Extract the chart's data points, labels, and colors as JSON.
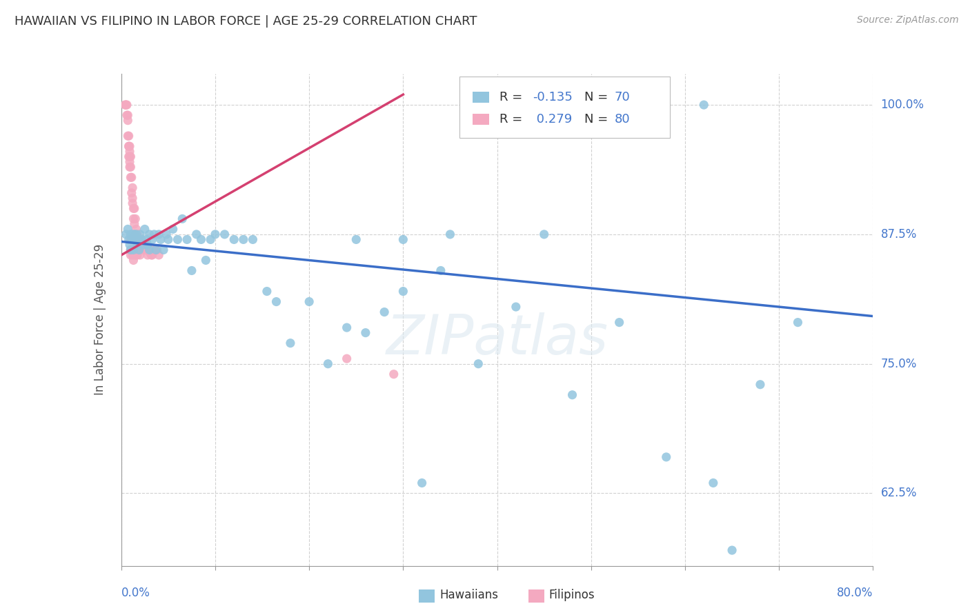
{
  "title": "HAWAIIAN VS FILIPINO IN LABOR FORCE | AGE 25-29 CORRELATION CHART",
  "source": "Source: ZipAtlas.com",
  "ylabel": "In Labor Force | Age 25-29",
  "xlim": [
    0.0,
    0.8
  ],
  "ylim": [
    0.555,
    1.03
  ],
  "hawaii_R": -0.135,
  "hawaii_N": 70,
  "filipino_R": 0.279,
  "filipino_N": 80,
  "hawaii_color": "#92C5DE",
  "filipino_color": "#F4A9C0",
  "hawaii_trend_color": "#3B6EC8",
  "filipino_trend_color": "#D44070",
  "watermark": "ZIPatlas",
  "background_color": "#ffffff",
  "grid_color": "#cccccc",
  "ytick_vals": [
    0.625,
    0.75,
    0.875,
    1.0
  ],
  "ytick_labels": [
    "62.5%",
    "75.0%",
    "87.5%",
    "100.0%"
  ],
  "hawaii_trend_x": [
    0.0,
    0.8
  ],
  "hawaii_trend_y": [
    0.868,
    0.796
  ],
  "filipino_trend_x": [
    0.0,
    0.3
  ],
  "filipino_trend_y": [
    0.855,
    1.01
  ],
  "hawaiians_x": [
    0.005,
    0.007,
    0.008,
    0.009,
    0.01,
    0.01,
    0.011,
    0.012,
    0.013,
    0.014,
    0.015,
    0.016,
    0.017,
    0.018,
    0.019,
    0.02,
    0.022,
    0.024,
    0.025,
    0.027,
    0.028,
    0.03,
    0.03,
    0.033,
    0.035,
    0.037,
    0.04,
    0.042,
    0.045,
    0.048,
    0.05,
    0.055,
    0.06,
    0.065,
    0.07,
    0.075,
    0.08,
    0.085,
    0.09,
    0.095,
    0.1,
    0.11,
    0.12,
    0.13,
    0.14,
    0.155,
    0.165,
    0.18,
    0.2,
    0.22,
    0.24,
    0.26,
    0.28,
    0.3,
    0.32,
    0.34,
    0.38,
    0.42,
    0.48,
    0.53,
    0.58,
    0.63,
    0.65,
    0.68,
    0.72,
    0.3,
    0.35,
    0.25,
    0.45,
    0.62
  ],
  "hawaiians_y": [
    0.875,
    0.88,
    0.87,
    0.865,
    0.875,
    0.86,
    0.87,
    0.875,
    0.86,
    0.875,
    0.87,
    0.875,
    0.865,
    0.87,
    0.86,
    0.875,
    0.87,
    0.865,
    0.88,
    0.87,
    0.865,
    0.875,
    0.86,
    0.87,
    0.875,
    0.86,
    0.875,
    0.87,
    0.86,
    0.875,
    0.87,
    0.88,
    0.87,
    0.89,
    0.87,
    0.84,
    0.875,
    0.87,
    0.85,
    0.87,
    0.875,
    0.875,
    0.87,
    0.87,
    0.87,
    0.82,
    0.81,
    0.77,
    0.81,
    0.75,
    0.785,
    0.78,
    0.8,
    0.82,
    0.635,
    0.84,
    0.75,
    0.805,
    0.72,
    0.79,
    0.66,
    0.635,
    0.57,
    0.73,
    0.79,
    0.87,
    0.875,
    0.87,
    0.875,
    1.0
  ],
  "filipinos_x": [
    0.004,
    0.005,
    0.005,
    0.006,
    0.006,
    0.007,
    0.007,
    0.007,
    0.008,
    0.008,
    0.008,
    0.009,
    0.009,
    0.009,
    0.01,
    0.01,
    0.01,
    0.011,
    0.011,
    0.012,
    0.012,
    0.012,
    0.013,
    0.013,
    0.014,
    0.014,
    0.015,
    0.015,
    0.016,
    0.016,
    0.017,
    0.017,
    0.018,
    0.019,
    0.02,
    0.021,
    0.022,
    0.023,
    0.025,
    0.027,
    0.03,
    0.032,
    0.035,
    0.038,
    0.04,
    0.01,
    0.01,
    0.01,
    0.011,
    0.011,
    0.012,
    0.012,
    0.013,
    0.013,
    0.013,
    0.014,
    0.014,
    0.015,
    0.015,
    0.016,
    0.016,
    0.017,
    0.018,
    0.019,
    0.02,
    0.022,
    0.025,
    0.028,
    0.03,
    0.033,
    0.035,
    0.008,
    0.009,
    0.009,
    0.01,
    0.01,
    0.011,
    0.012,
    0.24,
    0.29
  ],
  "filipinos_y": [
    1.0,
    1.0,
    1.0,
    1.0,
    0.99,
    0.99,
    0.985,
    0.97,
    0.97,
    0.96,
    0.95,
    0.96,
    0.955,
    0.94,
    0.95,
    0.94,
    0.93,
    0.93,
    0.915,
    0.92,
    0.91,
    0.905,
    0.9,
    0.89,
    0.9,
    0.885,
    0.89,
    0.875,
    0.88,
    0.87,
    0.875,
    0.86,
    0.87,
    0.865,
    0.86,
    0.87,
    0.86,
    0.865,
    0.86,
    0.865,
    0.86,
    0.855,
    0.86,
    0.86,
    0.855,
    0.87,
    0.86,
    0.855,
    0.87,
    0.86,
    0.855,
    0.87,
    0.86,
    0.85,
    0.87,
    0.86,
    0.855,
    0.87,
    0.86,
    0.86,
    0.855,
    0.855,
    0.865,
    0.86,
    0.855,
    0.86,
    0.86,
    0.855,
    0.858,
    0.855,
    0.86,
    0.96,
    0.95,
    0.945,
    0.87,
    0.86,
    0.87,
    0.86,
    0.755,
    0.74
  ]
}
